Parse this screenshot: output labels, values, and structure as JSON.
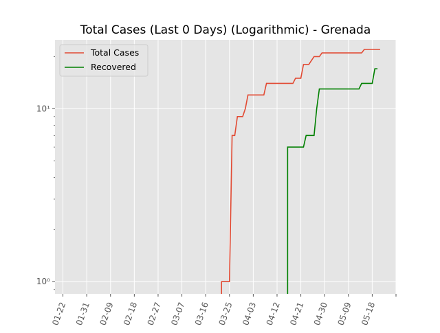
{
  "chart_data": {
    "type": "line",
    "title": "Total Cases (Last 0 Days) (Logarithmic) - Grenada",
    "xlabel": "",
    "ylabel": "",
    "x_scale": "date",
    "y_scale": "log",
    "x_range": [
      "2020-01-19",
      "2020-05-27"
    ],
    "y_range": [
      0.85,
      25
    ],
    "x_ticks": [
      {
        "date": "2020-01-22",
        "label": "01-22"
      },
      {
        "date": "2020-01-31",
        "label": "01-31"
      },
      {
        "date": "2020-02-09",
        "label": "02-09"
      },
      {
        "date": "2020-02-18",
        "label": "02-18"
      },
      {
        "date": "2020-02-27",
        "label": "02-27"
      },
      {
        "date": "2020-03-07",
        "label": "03-07"
      },
      {
        "date": "2020-03-16",
        "label": "03-16"
      },
      {
        "date": "2020-03-25",
        "label": "03-25"
      },
      {
        "date": "2020-04-03",
        "label": "04-03"
      },
      {
        "date": "2020-04-12",
        "label": "04-12"
      },
      {
        "date": "2020-04-21",
        "label": "04-21"
      },
      {
        "date": "2020-04-30",
        "label": "04-30"
      },
      {
        "date": "2020-05-09",
        "label": "05-09"
      },
      {
        "date": "2020-05-18",
        "label": "05-18"
      },
      {
        "date": "2020-05-27",
        "label": ""
      }
    ],
    "y_ticks": [
      {
        "value": 1,
        "label": "10⁰"
      },
      {
        "value": 10,
        "label": "10¹"
      }
    ],
    "grid": true,
    "legend": "top-left",
    "series": [
      {
        "name": "Total Cases",
        "color": "#e24a33",
        "points": [
          [
            "2020-03-22",
            1
          ],
          [
            "2020-03-25",
            1
          ],
          [
            "2020-03-26",
            7
          ],
          [
            "2020-03-27",
            7
          ],
          [
            "2020-03-28",
            9
          ],
          [
            "2020-03-30",
            9
          ],
          [
            "2020-03-31",
            10
          ],
          [
            "2020-04-01",
            12
          ],
          [
            "2020-04-07",
            12
          ],
          [
            "2020-04-08",
            14
          ],
          [
            "2020-04-18",
            14
          ],
          [
            "2020-04-19",
            15
          ],
          [
            "2020-04-21",
            15
          ],
          [
            "2020-04-22",
            18
          ],
          [
            "2020-04-24",
            18
          ],
          [
            "2020-04-26",
            20
          ],
          [
            "2020-04-28",
            20
          ],
          [
            "2020-04-29",
            21
          ],
          [
            "2020-05-14",
            21
          ],
          [
            "2020-05-15",
            22
          ],
          [
            "2020-05-21",
            22
          ]
        ]
      },
      {
        "name": "Recovered",
        "color": "#008000",
        "points": [
          [
            "2020-04-16",
            6
          ],
          [
            "2020-04-22",
            6
          ],
          [
            "2020-04-23",
            7
          ],
          [
            "2020-04-26",
            7
          ],
          [
            "2020-04-27",
            10
          ],
          [
            "2020-04-28",
            13
          ],
          [
            "2020-05-13",
            13
          ],
          [
            "2020-05-14",
            14
          ],
          [
            "2020-05-18",
            14
          ],
          [
            "2020-05-19",
            17
          ],
          [
            "2020-05-20",
            17
          ]
        ]
      }
    ]
  }
}
